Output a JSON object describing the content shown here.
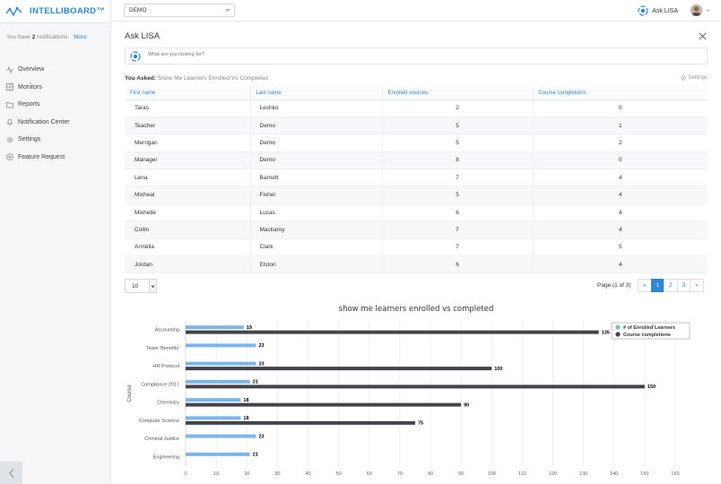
{
  "brand": {
    "name": "INTELLIBOARD™"
  },
  "notifications": {
    "prefix": "You have",
    "count": "2",
    "suffix": "notifications.",
    "more_label": "More"
  },
  "sidebar": {
    "items": [
      {
        "label": "Overview",
        "icon": "activity-icon"
      },
      {
        "label": "Monitors",
        "icon": "grid-icon"
      },
      {
        "label": "Reports",
        "icon": "folder-icon"
      },
      {
        "label": "Notification Center",
        "icon": "bell-icon"
      },
      {
        "label": "Settings",
        "icon": "gear-icon"
      },
      {
        "label": "Feature Request",
        "icon": "plus-circle-icon"
      }
    ]
  },
  "topbar": {
    "selected_site": "DEMO",
    "ask_lisa_label": "Ask LISA"
  },
  "panel": {
    "title": "Ask LISA",
    "search_placeholder": "What are you looking for?",
    "asked_label": "You Asked:",
    "asked_query": "Show Me Learners Enrolled Vs Completed",
    "settings_label": "Settings"
  },
  "table": {
    "headers": [
      "First name",
      "Last name",
      "Enrolled courses",
      "Course completions"
    ],
    "rows": [
      [
        "Taras",
        "Leshko",
        "2",
        "0"
      ],
      [
        "Teacher",
        "Demo",
        "5",
        "1"
      ],
      [
        "Merrigan",
        "Demo",
        "5",
        "2"
      ],
      [
        "Manager",
        "Demo",
        "8",
        "0"
      ],
      [
        "Lena",
        "Barnett",
        "7",
        "4"
      ],
      [
        "Micheal",
        "Fisher",
        "5",
        "4"
      ],
      [
        "Michelle",
        "Lucas",
        "6",
        "4"
      ],
      [
        "Collin",
        "Mackaroy",
        "7",
        "4"
      ],
      [
        "Armella",
        "Clark",
        "7",
        "5"
      ],
      [
        "Jordan",
        "Elston",
        "6",
        "4"
      ]
    ]
  },
  "pagination": {
    "per_page": "10",
    "page_info": "Page (1 of 3)",
    "prev": "«",
    "pages": [
      "1",
      "2",
      "3"
    ],
    "next": "»",
    "current": "1"
  },
  "colors": {
    "accent": "#2d86d6",
    "enrolled": "#7cb5ec",
    "completed": "#434348"
  },
  "chart_data": {
    "type": "bar",
    "orientation": "horizontal",
    "title": "show me learners enrolled vs completed",
    "ylabel": "Course",
    "xlabel": "",
    "categories": [
      "Accounting",
      "Team 'Benefits'",
      "HR Protocol",
      "Compliance 2017",
      "Chemistry",
      "Computer Science",
      "Criminal Justice",
      "Engineering"
    ],
    "series": [
      {
        "name": "# of Enrolled Learners",
        "values": [
          19,
          23,
          23,
          21,
          18,
          18,
          23,
          21
        ],
        "color": "#7cb5ec"
      },
      {
        "name": "Course completions",
        "values": [
          135,
          null,
          100,
          150,
          90,
          75,
          null,
          null
        ],
        "color": "#434348"
      }
    ],
    "x_ticks": [
      0,
      10,
      20,
      30,
      40,
      50,
      60,
      70,
      80,
      90,
      100,
      110,
      120,
      130,
      140,
      150,
      160
    ],
    "xlim": [
      0,
      160
    ],
    "grid": true,
    "legend": "top-right"
  }
}
